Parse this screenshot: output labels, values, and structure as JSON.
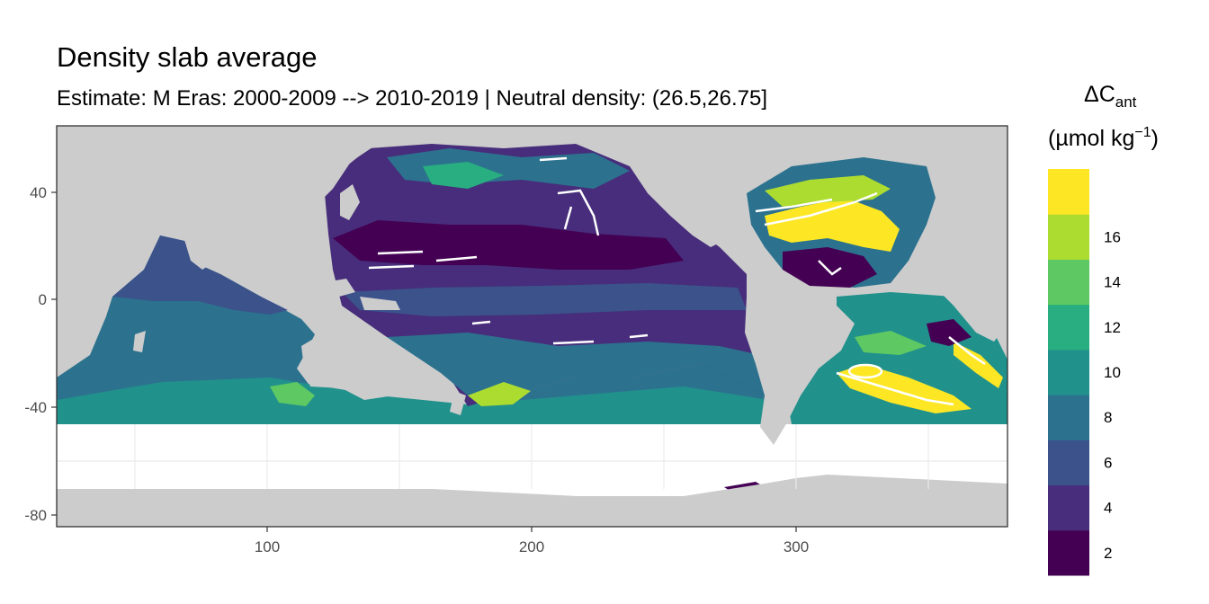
{
  "title": "Density slab average",
  "subtitle": "Estimate: M Eras: 2000-2009 --> 2010-2019 | Neutral density: (26.5,26.75]",
  "legend": {
    "title_main": "ΔC",
    "title_sub": "ant",
    "unit_open": "(µmol kg",
    "unit_exp": "−1",
    "unit_close": ")",
    "placement": "right",
    "bins": [
      {
        "from": 0,
        "to": 2,
        "color": "#440154"
      },
      {
        "from": 2,
        "to": 4,
        "color": "#472d7b"
      },
      {
        "from": 4,
        "to": 6,
        "color": "#3b528b"
      },
      {
        "from": 6,
        "to": 8,
        "color": "#2c728e"
      },
      {
        "from": 8,
        "to": 10,
        "color": "#21918c"
      },
      {
        "from": 10,
        "to": 12,
        "color": "#28ae80"
      },
      {
        "from": 12,
        "to": 14,
        "color": "#5ec962"
      },
      {
        "from": 14,
        "to": 16,
        "color": "#addc30"
      },
      {
        "from": 16,
        "to": 18,
        "color": "#fde725"
      }
    ],
    "tick_labels": [
      "2",
      "4",
      "6",
      "8",
      "10",
      "12",
      "14",
      "16"
    ]
  },
  "colors": {
    "land": "#cccccc",
    "no_data": "#ffffff",
    "panel_border": "#333333",
    "grid": "#ebebeb",
    "contour": "#ffffff"
  },
  "axes": {
    "x_ticks": [
      "100",
      "200",
      "300"
    ],
    "y_ticks": [
      "40",
      "0",
      "-40",
      "-80"
    ],
    "x_range": [
      20,
      380
    ],
    "y_range": [
      -85,
      65
    ],
    "grid": true
  }
}
